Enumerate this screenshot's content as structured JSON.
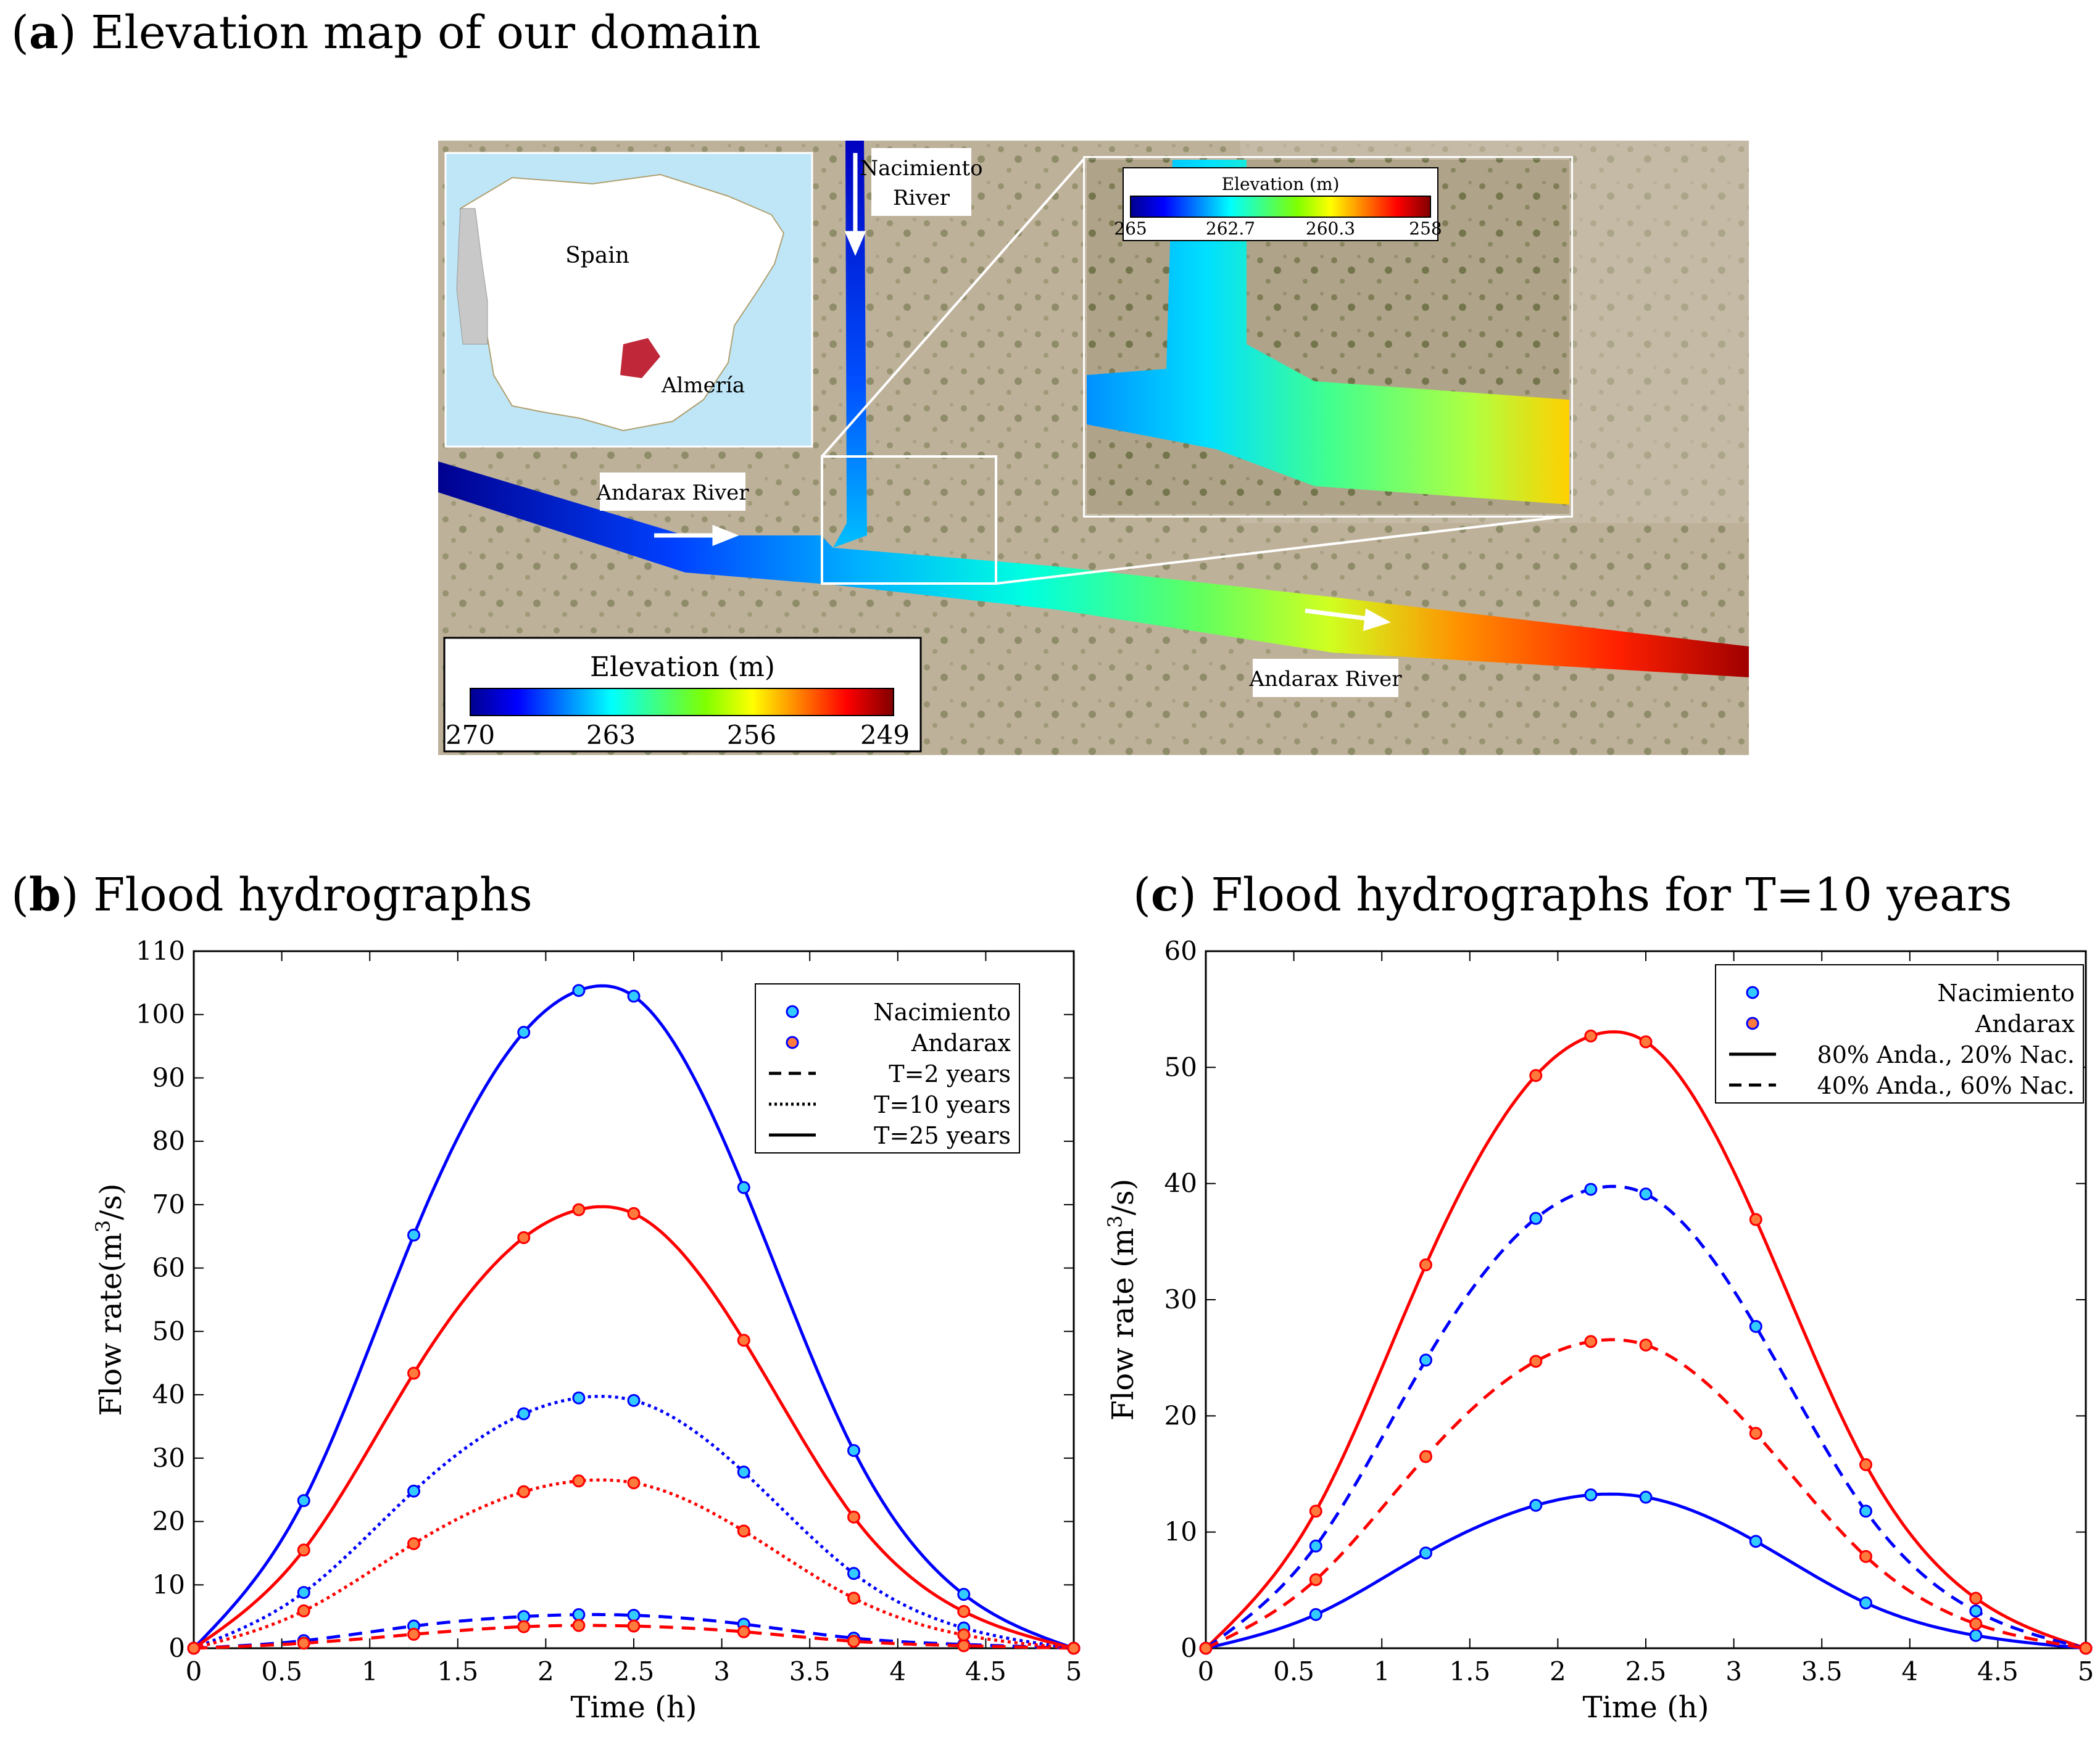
{
  "panel_a": {
    "letter": "a",
    "title": "Elevation map of our domain",
    "inset_labels": {
      "country": "Spain",
      "region": "Almería"
    },
    "river_labels": {
      "nacimiento_line1": "Nacimiento",
      "nacimiento_line2": "River",
      "andarax_upper": "Andarax River",
      "andarax_lower": "Andarax River"
    },
    "main_colorbar": {
      "title": "Elevation (m)",
      "ticks": [
        "270",
        "263",
        "256",
        "249"
      ]
    },
    "zoom_colorbar": {
      "title": "Elevation (m)",
      "ticks": [
        "265",
        "262.7",
        "260.3",
        "258"
      ]
    },
    "colormap": [
      "#00008f",
      "#0000ff",
      "#0080ff",
      "#00ffff",
      "#40ff80",
      "#80ff00",
      "#ffff00",
      "#ff8000",
      "#ff0000",
      "#800000"
    ]
  },
  "panel_b": {
    "letter": "b",
    "title": "Flood hydrographs",
    "chart_data": {
      "type": "line",
      "title": "Flood hydrographs",
      "xlabel": "Time (h)",
      "ylabel": "Flow rate(m",
      "ylabel_sup": "3",
      "ylabel_tail": "/s)",
      "xlim": [
        0,
        5
      ],
      "ylim": [
        0,
        110
      ],
      "xticks": [
        0,
        0.5,
        1,
        1.5,
        2,
        2.5,
        3,
        3.5,
        4,
        4.5,
        5
      ],
      "yticks": [
        0,
        10,
        20,
        30,
        40,
        50,
        60,
        70,
        80,
        90,
        100,
        110
      ],
      "x": [
        0,
        0.625,
        1.25,
        1.875,
        2.1875,
        2.5,
        3.125,
        3.75,
        4.375,
        5
      ],
      "series": [
        {
          "name": "Nacimiento T=2 years",
          "station": "Nacimiento",
          "style": "dashed",
          "color": "#0000ff",
          "values": [
            0,
            1.2,
            3.5,
            5.0,
            5.3,
            5.2,
            3.8,
            1.6,
            0.6,
            0
          ]
        },
        {
          "name": "Andarax T=2 years",
          "station": "Andarax",
          "style": "dashed",
          "color": "#ff0000",
          "values": [
            0,
            0.8,
            2.2,
            3.4,
            3.6,
            3.5,
            2.6,
            1.1,
            0.4,
            0
          ]
        },
        {
          "name": "Nacimiento T=10 years",
          "station": "Nacimiento",
          "style": "dotted",
          "color": "#0000ff",
          "values": [
            0,
            8.8,
            24.8,
            37.0,
            39.5,
            39.1,
            27.8,
            11.8,
            3.2,
            0
          ]
        },
        {
          "name": "Andarax T=10 years",
          "station": "Andarax",
          "style": "dotted",
          "color": "#ff0000",
          "values": [
            0,
            5.9,
            16.5,
            24.7,
            26.4,
            26.1,
            18.5,
            7.9,
            2.1,
            0
          ]
        },
        {
          "name": "Nacimiento T=25 years",
          "station": "Nacimiento",
          "style": "solid",
          "color": "#0000ff",
          "values": [
            0,
            23.3,
            65.2,
            97.2,
            103.8,
            102.9,
            72.7,
            31.2,
            8.5,
            0
          ]
        },
        {
          "name": "Andarax T=25 years",
          "station": "Andarax",
          "style": "solid",
          "color": "#ff0000",
          "values": [
            0,
            15.5,
            43.4,
            64.8,
            69.2,
            68.6,
            48.6,
            20.7,
            5.8,
            0
          ]
        }
      ],
      "legend": [
        {
          "label": "Nacimiento",
          "kind": "marker",
          "fill": "#33ccff"
        },
        {
          "label": "Andarax",
          "kind": "marker",
          "fill": "#ff7a3d"
        },
        {
          "label": "T=2 years",
          "kind": "line",
          "style": "dashed"
        },
        {
          "label": "T=10 years",
          "kind": "line",
          "style": "dotted"
        },
        {
          "label": "T=25 years",
          "kind": "line",
          "style": "solid"
        }
      ],
      "legend_position": "top-right",
      "grid": false
    }
  },
  "panel_c": {
    "letter": "c",
    "title": "Flood hydrographs for T=10 years",
    "chart_data": {
      "type": "line",
      "title": "Flood hydrographs for T=10 years",
      "xlabel": "Time (h)",
      "ylabel": "Flow rate (m",
      "ylabel_sup": "3",
      "ylabel_tail": "/s)",
      "xlim": [
        0,
        5
      ],
      "ylim": [
        0,
        60
      ],
      "xticks": [
        0,
        0.5,
        1,
        1.5,
        2,
        2.5,
        3,
        3.5,
        4,
        4.5,
        5
      ],
      "yticks": [
        0,
        10,
        20,
        30,
        40,
        50,
        60
      ],
      "x": [
        0,
        0.625,
        1.25,
        1.875,
        2.1875,
        2.5,
        3.125,
        3.75,
        4.375,
        5
      ],
      "series": [
        {
          "name": "Andarax 80% Anda., 20% Nac.",
          "station": "Andarax",
          "style": "solid",
          "color": "#ff0000",
          "values": [
            0,
            11.8,
            33.0,
            49.3,
            52.7,
            52.2,
            36.9,
            15.8,
            4.3,
            0
          ]
        },
        {
          "name": "Nacimiento 80% Anda., 20% Nac.",
          "station": "Nacimiento",
          "style": "solid",
          "color": "#0000ff",
          "values": [
            0,
            2.9,
            8.2,
            12.3,
            13.2,
            13.0,
            9.2,
            3.9,
            1.1,
            0
          ]
        },
        {
          "name": "Nacimiento 40% Anda., 60% Nac.",
          "station": "Nacimiento",
          "style": "dashed",
          "color": "#0000ff",
          "values": [
            0,
            8.8,
            24.8,
            37.0,
            39.5,
            39.1,
            27.7,
            11.8,
            3.2,
            0
          ]
        },
        {
          "name": "Andarax 40% Anda., 60% Nac.",
          "station": "Andarax",
          "style": "dashed",
          "color": "#ff0000",
          "values": [
            0,
            5.9,
            16.5,
            24.7,
            26.4,
            26.1,
            18.5,
            7.9,
            2.1,
            0
          ]
        }
      ],
      "legend": [
        {
          "label": "Nacimiento",
          "kind": "marker",
          "fill": "#33ccff"
        },
        {
          "label": "Andarax",
          "kind": "marker",
          "fill": "#ff7a3d"
        },
        {
          "label": "80% Anda., 20% Nac.",
          "kind": "line",
          "style": "solid"
        },
        {
          "label": "40% Anda., 60% Nac.",
          "kind": "line",
          "style": "dashed"
        }
      ],
      "legend_position": "top-right",
      "grid": false
    }
  },
  "colors": {
    "nacimiento_line": "#0000ff",
    "andarax_line": "#ff0000",
    "nacimiento_marker": "#33ccff",
    "andarax_marker": "#ff7a3d"
  }
}
